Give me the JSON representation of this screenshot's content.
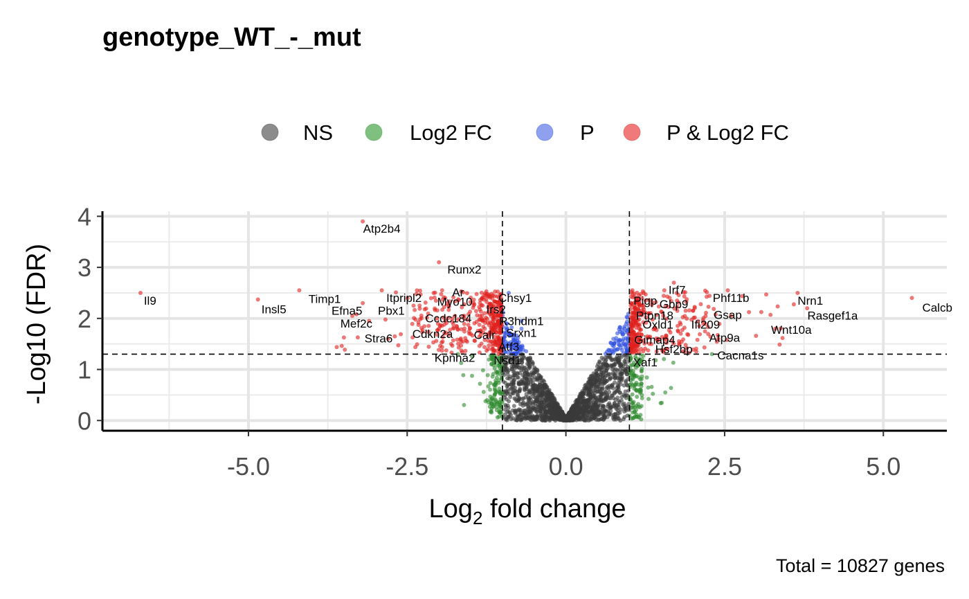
{
  "chart_data": {
    "type": "scatter",
    "title": "genotype_WT_-_mut",
    "xlabel_main": "Log",
    "xlabel_sub": "2",
    "xlabel_rest": " fold change",
    "ylabel": "-Log10 (FDR)",
    "caption": "Total = 10827 genes",
    "xlim": [
      -7.3,
      6.0
    ],
    "ylim": [
      -0.2,
      4.1
    ],
    "x_ticks": [
      -5.0,
      -2.5,
      0.0,
      2.5,
      5.0
    ],
    "x_tick_labels": [
      "-5.0",
      "-2.5",
      "0.0",
      "2.5",
      "5.0"
    ],
    "y_ticks": [
      0,
      1,
      2,
      3,
      4
    ],
    "y_tick_labels": [
      "0",
      "1",
      "2",
      "3",
      "4"
    ],
    "grid": true,
    "legend_position": "top",
    "fc_cutoff": 1.0,
    "p_cutoff": 1.3,
    "categories": [
      "NS",
      "Log2 FC",
      "P",
      "P & Log2 FC"
    ],
    "colors": {
      "NS": "#3a3a3a",
      "Log2 FC": "#2e8b2e",
      "P": "#2f50e0",
      "P & Log2 FC": "#e0201c"
    },
    "legend_colors": {
      "NS": "#8c8c8c",
      "Log2 FC": "#7fbf7f",
      "P": "#8fa0ee",
      "P & Log2 FC": "#f07a7a"
    },
    "labeled_genes": [
      {
        "name": "Atp2b4",
        "x": -3.2,
        "y": 3.9,
        "lx": -2.9,
        "ly": 3.68
      },
      {
        "name": "Runx2",
        "x": -2.0,
        "y": 3.1,
        "lx": -1.6,
        "ly": 2.88
      },
      {
        "name": "Il9",
        "x": -6.7,
        "y": 2.5,
        "lx": -6.55,
        "ly": 2.27
      },
      {
        "name": "Insl5",
        "x": -4.85,
        "y": 2.37,
        "lx": -4.6,
        "ly": 2.1
      },
      {
        "name": "Timp1",
        "x": -4.2,
        "y": 2.55,
        "lx": -3.8,
        "ly": 2.3
      },
      {
        "name": "Itpripl2",
        "x": -2.9,
        "y": 2.55,
        "lx": -2.55,
        "ly": 2.32
      },
      {
        "name": "Ar",
        "x": -1.95,
        "y": 2.55,
        "lx": -1.7,
        "ly": 2.43
      },
      {
        "name": "Chsy1",
        "x": -0.9,
        "y": 2.5,
        "lx": -0.8,
        "ly": 2.32
      },
      {
        "name": "Myo10",
        "x": -1.9,
        "y": 2.4,
        "lx": -1.75,
        "ly": 2.25
      },
      {
        "name": "Efna5",
        "x": -3.2,
        "y": 2.3,
        "lx": -3.45,
        "ly": 2.07
      },
      {
        "name": "Pbx1",
        "x": -2.4,
        "y": 2.25,
        "lx": -2.75,
        "ly": 2.07
      },
      {
        "name": "Irs2",
        "x": -1.1,
        "y": 2.2,
        "lx": -1.1,
        "ly": 2.1
      },
      {
        "name": "Ccdc184",
        "x": -1.6,
        "y": 2.05,
        "lx": -1.85,
        "ly": 1.92
      },
      {
        "name": "R3hdm1",
        "x": -0.7,
        "y": 1.95,
        "lx": -0.7,
        "ly": 1.87
      },
      {
        "name": "Mef2c",
        "x": -3.1,
        "y": 1.95,
        "lx": -3.3,
        "ly": 1.82
      },
      {
        "name": "Srxn1",
        "x": -0.7,
        "y": 1.8,
        "lx": -0.7,
        "ly": 1.64
      },
      {
        "name": "Cdkn2a",
        "x": -2.0,
        "y": 1.8,
        "lx": -2.1,
        "ly": 1.62
      },
      {
        "name": "Calr",
        "x": -1.3,
        "y": 1.72,
        "lx": -1.28,
        "ly": 1.6
      },
      {
        "name": "Stra6",
        "x": -2.8,
        "y": 1.6,
        "lx": -2.95,
        "ly": 1.53
      },
      {
        "name": "Atf3",
        "x": -0.9,
        "y": 1.5,
        "lx": -0.9,
        "ly": 1.37
      },
      {
        "name": "Kpnha2",
        "x": -1.7,
        "y": 1.3,
        "lx": -1.75,
        "ly": 1.15
      },
      {
        "name": "Nsd1",
        "x": -0.9,
        "y": 1.25,
        "lx": -0.92,
        "ly": 1.1
      },
      {
        "name": "Irf7",
        "x": 1.7,
        "y": 2.7,
        "lx": 1.75,
        "ly": 2.48
      },
      {
        "name": "Pigp",
        "x": 1.15,
        "y": 2.45,
        "lx": 1.25,
        "ly": 2.27
      },
      {
        "name": "Gbp9",
        "x": 1.75,
        "y": 2.35,
        "lx": 1.7,
        "ly": 2.2
      },
      {
        "name": "Phf11b",
        "x": 2.55,
        "y": 2.55,
        "lx": 2.6,
        "ly": 2.32
      },
      {
        "name": "Nrn1",
        "x": 3.65,
        "y": 2.5,
        "lx": 3.85,
        "ly": 2.27
      },
      {
        "name": "Ptpn18",
        "x": 1.3,
        "y": 2.1,
        "lx": 1.4,
        "ly": 1.98
      },
      {
        "name": "Gsap",
        "x": 2.6,
        "y": 2.05,
        "lx": 2.55,
        "ly": 1.99
      },
      {
        "name": "Rasgef1a",
        "x": 3.8,
        "y": 2.2,
        "lx": 4.2,
        "ly": 1.98
      },
      {
        "name": "Calcb",
        "x": 5.45,
        "y": 2.4,
        "lx": 5.85,
        "ly": 2.13
      },
      {
        "name": "Ifi209",
        "x": 2.1,
        "y": 1.85,
        "lx": 2.2,
        "ly": 1.8
      },
      {
        "name": "Oxld1",
        "x": 1.4,
        "y": 1.8,
        "lx": 1.45,
        "ly": 1.8
      },
      {
        "name": "Wnt10a",
        "x": 3.3,
        "y": 1.8,
        "lx": 3.55,
        "ly": 1.7
      },
      {
        "name": "Atp9a",
        "x": 2.4,
        "y": 1.6,
        "lx": 2.5,
        "ly": 1.54
      },
      {
        "name": "Gimap4",
        "x": 1.45,
        "y": 1.6,
        "lx": 1.4,
        "ly": 1.5
      },
      {
        "name": "Hsf2bp",
        "x": 1.6,
        "y": 1.4,
        "lx": 1.7,
        "ly": 1.32
      },
      {
        "name": "Cacna1s",
        "x": 2.3,
        "y": 1.3,
        "lx": 2.75,
        "ly": 1.2
      },
      {
        "name": "Xaf1",
        "x": 1.2,
        "y": 1.2,
        "lx": 1.25,
        "ly": 1.06
      }
    ]
  }
}
